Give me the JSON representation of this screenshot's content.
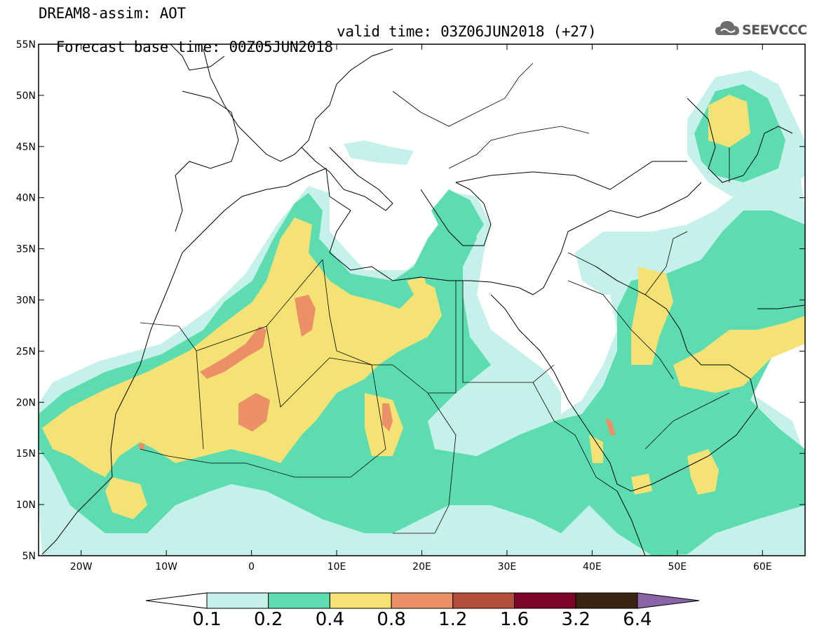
{
  "title": {
    "line1": "DREAM8-assim: AOT",
    "line2_base": "Forecast base time: 00Z05JUN2018",
    "line2_valid": "valid time: 03Z06JUN2018 (+27)"
  },
  "logo": {
    "text": "SEEVCCC",
    "icon": "cloud-icon"
  },
  "map": {
    "lat_labels": [
      "55N",
      "50N",
      "45N",
      "40N",
      "35N",
      "30N",
      "25N",
      "20N",
      "15N",
      "10N",
      "5N"
    ],
    "lon_labels": [
      "20W",
      "10W",
      "0",
      "10E",
      "20E",
      "30E",
      "40E",
      "50E",
      "60E"
    ],
    "lon_range": [
      -25,
      65
    ],
    "lat_range": [
      5,
      55
    ]
  },
  "colorbar": {
    "levels": [
      "0.1",
      "0.2",
      "0.4",
      "0.8",
      "1.2",
      "1.6",
      "3.2",
      "6.4"
    ],
    "colors": [
      "#ffffff",
      "#c6f1ea",
      "#5ddcb0",
      "#f5e274",
      "#ec9068",
      "#b24e3a",
      "#7c0527",
      "#3a2412",
      "#8a64a6"
    ]
  }
}
